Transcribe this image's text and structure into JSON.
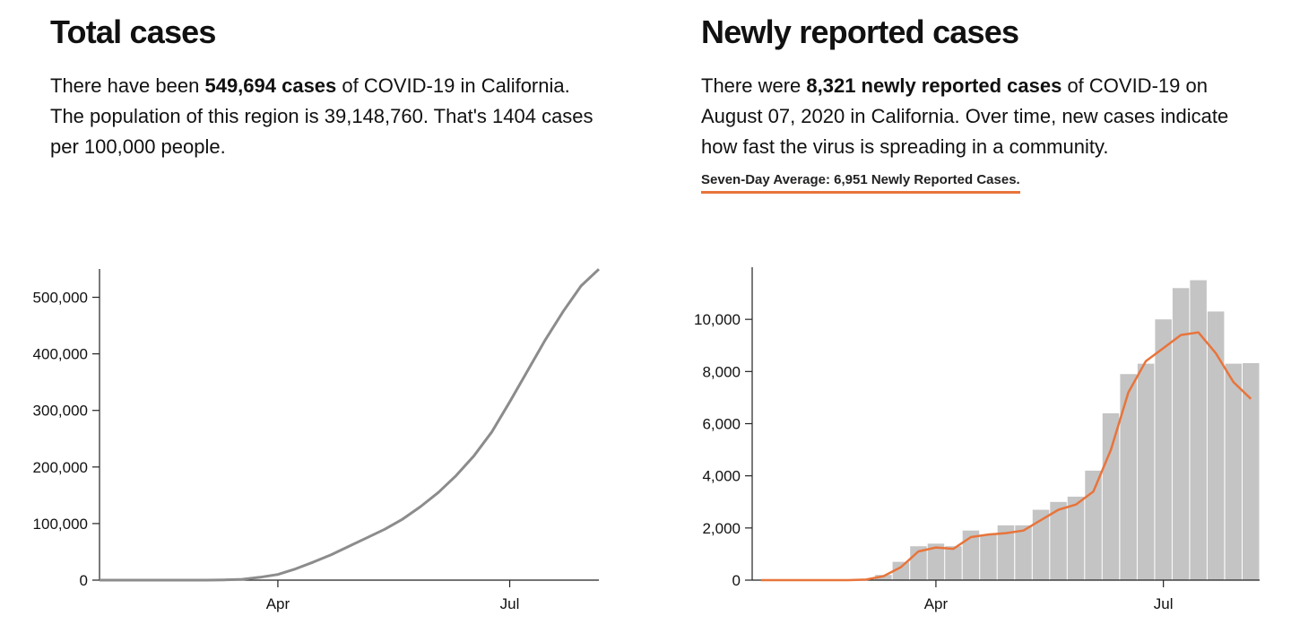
{
  "left": {
    "title": "Total cases",
    "text_1": "There have been ",
    "bold": "549,694 cases",
    "text_2": " of COVID-19 in California. The population of this region is 39,148,760. That's 1404 cases per 100,000 people."
  },
  "right": {
    "title": "Newly reported cases",
    "text_1": "There were ",
    "bold": "8,321 newly reported cases",
    "text_2": " of COVID-19 on August 07, 2020 in California. Over time, new cases indicate how fast the virus is spreading in a community.",
    "average_label": "Seven-Day Average: 6,951 Newly Reported Cases."
  },
  "colors": {
    "line": "#8c8c8c",
    "bars": "#c4c4c4",
    "average": "#e8743b",
    "axis": "#222222"
  },
  "chart_data": [
    {
      "type": "line",
      "x_unit": "week",
      "x_start": "2020-01-20",
      "x_tick_labels": [
        {
          "label": "Apr",
          "x": 10
        },
        {
          "label": "Jul",
          "x": 23
        }
      ],
      "ylim": [
        0,
        550000
      ],
      "y_ticks": [
        0,
        100000,
        200000,
        300000,
        400000,
        500000
      ],
      "y_tick_labels": [
        "0",
        "100,000",
        "200,000",
        "300,000",
        "400,000",
        "500,000"
      ],
      "series": [
        {
          "x": [
            0,
            1,
            2,
            3,
            4,
            5,
            6,
            7,
            8,
            9,
            10,
            11,
            12,
            13,
            14,
            15,
            16,
            17,
            18,
            19,
            20,
            21,
            22,
            23,
            24,
            25,
            26,
            27,
            28
          ],
          "values": [
            0,
            0,
            0,
            0,
            0,
            0,
            50,
            500,
            1500,
            5000,
            10000,
            20000,
            32000,
            45000,
            60000,
            75000,
            90000,
            108000,
            130000,
            155000,
            185000,
            220000,
            262000,
            315000,
            370000,
            425000,
            475000,
            520000,
            549694
          ]
        }
      ]
    },
    {
      "type": "bar",
      "x_unit": "week",
      "x_start": "2020-01-20",
      "x_tick_labels": [
        {
          "label": "Apr",
          "x": 10
        },
        {
          "label": "Jul",
          "x": 23
        }
      ],
      "ylim": [
        0,
        12000
      ],
      "y_ticks": [
        0,
        2000,
        4000,
        6000,
        8000,
        10000
      ],
      "y_tick_labels": [
        "0",
        "2,000",
        "4,000",
        "6,000",
        "8,000",
        "10,000"
      ],
      "series": [
        {
          "type": "bar",
          "x": [
            0,
            1,
            2,
            3,
            4,
            5,
            6,
            7,
            8,
            9,
            10,
            11,
            12,
            13,
            14,
            15,
            16,
            17,
            18,
            19,
            20,
            21,
            22,
            23,
            24,
            25,
            26,
            27,
            28
          ],
          "values": [
            0,
            0,
            0,
            0,
            0,
            0,
            30,
            200,
            700,
            1300,
            1400,
            1300,
            1900,
            1750,
            2100,
            2100,
            2700,
            3000,
            3200,
            4200,
            6400,
            7900,
            8300,
            10000,
            11200,
            11500,
            10300,
            8300,
            8321
          ]
        },
        {
          "type": "line",
          "x": [
            0,
            1,
            2,
            3,
            4,
            5,
            6,
            7,
            8,
            9,
            10,
            11,
            12,
            13,
            14,
            15,
            16,
            17,
            18,
            19,
            20,
            21,
            22,
            23,
            24,
            25,
            26,
            27,
            28
          ],
          "values": [
            0,
            0,
            0,
            0,
            0,
            0,
            20,
            150,
            500,
            1100,
            1250,
            1200,
            1650,
            1750,
            1800,
            1900,
            2300,
            2700,
            2900,
            3400,
            5000,
            7200,
            8400,
            8900,
            9400,
            9500,
            8700,
            7600,
            6951
          ]
        }
      ]
    }
  ]
}
